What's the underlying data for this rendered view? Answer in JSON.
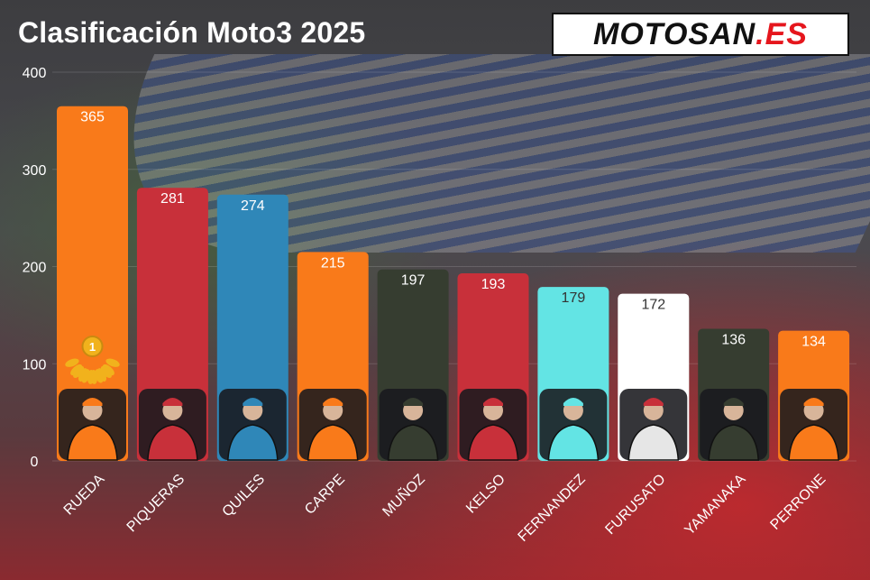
{
  "header": {
    "title": "Clasificación Moto3 2025",
    "logo_main": "MOTOSAN",
    "logo_accent": ".ES"
  },
  "colors": {
    "orange": "#f97a1a",
    "red": "#c8303a",
    "blue": "#2f87b8",
    "darkgreen": "#363d30",
    "cyan": "#63e4e4",
    "white": "#ffffff",
    "gold": "#f1b21c"
  },
  "chart_data": {
    "type": "bar",
    "title": "Clasificación Moto3 2025",
    "xlabel": "",
    "ylabel": "",
    "ylim": [
      0,
      400
    ],
    "yticks": [
      0,
      100,
      200,
      300,
      400
    ],
    "grid": true,
    "categories": [
      "RUEDA",
      "PIQUERAS",
      "QUILES",
      "CARPE",
      "MUÑOZ",
      "KELSO",
      "FERNANDEZ",
      "FURUSATO",
      "YAMANAKA",
      "PERRONE"
    ],
    "values": [
      365,
      281,
      274,
      215,
      197,
      193,
      179,
      172,
      136,
      134
    ],
    "bar_colors": [
      "#f97a1a",
      "#c8303a",
      "#2f87b8",
      "#f97a1a",
      "#363d30",
      "#c8303a",
      "#63e4e4",
      "#ffffff",
      "#363d30",
      "#f97a1a"
    ],
    "label_colors": [
      "#ffffff",
      "#ffffff",
      "#ffffff",
      "#ffffff",
      "#ffffff",
      "#ffffff",
      "#333333",
      "#333333",
      "#ffffff",
      "#ffffff"
    ],
    "annotations": [
      {
        "category": "RUEDA",
        "icon": "gold-medal-1-icon",
        "text": "1"
      }
    ]
  }
}
